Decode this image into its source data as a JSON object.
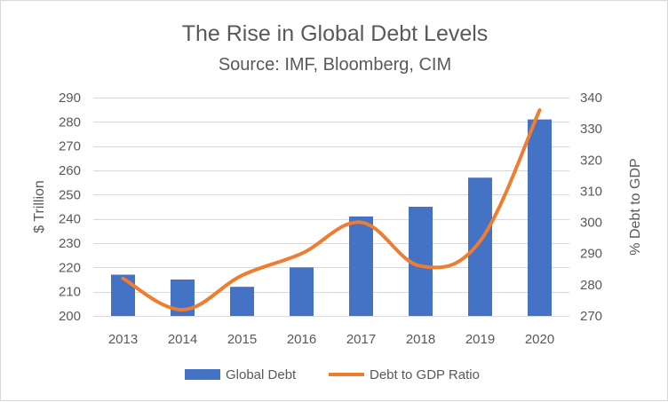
{
  "chart_data": {
    "type": "bar",
    "title": "The Rise in Global Debt Levels",
    "subtitle": "Source: IMF, Bloomberg, CIM",
    "categories": [
      "2013",
      "2014",
      "2015",
      "2016",
      "2017",
      "2018",
      "2019",
      "2020"
    ],
    "series": [
      {
        "name": "Global Debt",
        "type": "bar",
        "axis": "left",
        "color": "#4472c4",
        "values": [
          217,
          215,
          212,
          220,
          241,
          245,
          257,
          281
        ]
      },
      {
        "name": "Debt to GDP Ratio",
        "type": "line",
        "axis": "right",
        "color": "#ed7d31",
        "values": [
          282,
          272,
          283,
          290,
          300,
          286,
          294,
          336
        ]
      }
    ],
    "ylabel": "$ Trillion",
    "ylim": [
      200,
      290
    ],
    "yticks": [
      200,
      210,
      220,
      230,
      240,
      250,
      260,
      270,
      280,
      290
    ],
    "y2label": "% Debt to GDP",
    "y2lim": [
      270,
      340
    ],
    "y2ticks": [
      270,
      280,
      290,
      300,
      310,
      320,
      330,
      340
    ],
    "grid": true,
    "legend": "bottom"
  }
}
